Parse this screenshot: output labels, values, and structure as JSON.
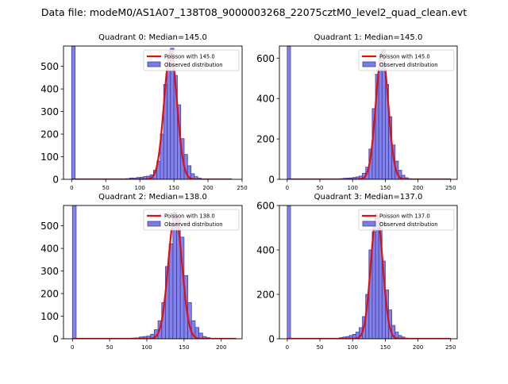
{
  "suptitle": "Data file: modeM0/AS1A07_138T08_9000003268_22075cztM0_level2_quad_clean.evt",
  "colors": {
    "bar_fill": "#7b7bea",
    "bar_edge": "#4040a0",
    "curve": "#e01010"
  },
  "chart_data": [
    {
      "type": "bar",
      "title": "Quadrant 0: Median=145.0",
      "xlim": [
        -12,
        250
      ],
      "ylim": [
        0,
        590
      ],
      "xticks": [
        0,
        50,
        100,
        150,
        200,
        250
      ],
      "yticks": [
        0,
        100,
        200,
        300,
        400,
        500
      ],
      "bin_width": 5,
      "bins": [
        [
          0,
          590
        ],
        [
          80,
          3
        ],
        [
          85,
          6
        ],
        [
          90,
          5
        ],
        [
          95,
          8
        ],
        [
          100,
          9
        ],
        [
          105,
          12
        ],
        [
          110,
          14
        ],
        [
          115,
          20
        ],
        [
          120,
          40
        ],
        [
          125,
          80
        ],
        [
          130,
          200
        ],
        [
          135,
          420
        ],
        [
          140,
          540
        ],
        [
          145,
          580
        ],
        [
          150,
          460
        ],
        [
          155,
          330
        ],
        [
          160,
          180
        ],
        [
          165,
          110
        ],
        [
          170,
          60
        ],
        [
          175,
          25
        ],
        [
          180,
          12
        ],
        [
          185,
          5
        ],
        [
          190,
          2
        ]
      ],
      "curve": {
        "label": "Poisson with 145.0",
        "mean": 145.0,
        "peak": 570,
        "xmax": 235
      },
      "legend": {
        "line": "Poisson with 145.0",
        "patch": "Observed distribution",
        "location": "upper right"
      }
    },
    {
      "type": "bar",
      "title": "Quadrant 1: Median=145.0",
      "xlim": [
        -12,
        260
      ],
      "ylim": [
        0,
        660
      ],
      "xticks": [
        0,
        50,
        100,
        150,
        200,
        250
      ],
      "yticks": [
        0,
        200,
        400,
        600
      ],
      "bin_width": 5,
      "bins": [
        [
          0,
          660
        ],
        [
          80,
          3
        ],
        [
          85,
          5
        ],
        [
          90,
          6
        ],
        [
          95,
          7
        ],
        [
          100,
          9
        ],
        [
          105,
          12
        ],
        [
          110,
          16
        ],
        [
          115,
          30
        ],
        [
          120,
          60
        ],
        [
          125,
          150
        ],
        [
          130,
          350
        ],
        [
          135,
          520
        ],
        [
          140,
          600
        ],
        [
          145,
          640
        ],
        [
          150,
          470
        ],
        [
          155,
          310
        ],
        [
          160,
          170
        ],
        [
          165,
          90
        ],
        [
          170,
          45
        ],
        [
          175,
          20
        ],
        [
          180,
          8
        ],
        [
          185,
          3
        ]
      ],
      "curve": {
        "label": "Poisson with 145.0",
        "mean": 145.0,
        "peak": 630,
        "xmax": 250
      },
      "legend": {
        "line": "Poisson with 145.0",
        "patch": "Observed distribution",
        "location": "upper right"
      }
    },
    {
      "type": "bar",
      "title": "Quadrant 2: Median=138.0",
      "xlim": [
        -12,
        228
      ],
      "ylim": [
        0,
        590
      ],
      "xticks": [
        0,
        50,
        100,
        150,
        200
      ],
      "yticks": [
        0,
        100,
        200,
        300,
        400,
        500
      ],
      "bin_width": 5,
      "bins": [
        [
          0,
          590
        ],
        [
          80,
          3
        ],
        [
          85,
          4
        ],
        [
          90,
          8
        ],
        [
          95,
          10
        ],
        [
          100,
          12
        ],
        [
          105,
          20
        ],
        [
          110,
          40
        ],
        [
          115,
          80
        ],
        [
          120,
          160
        ],
        [
          125,
          320
        ],
        [
          130,
          420
        ],
        [
          135,
          560
        ],
        [
          140,
          530
        ],
        [
          145,
          450
        ],
        [
          150,
          280
        ],
        [
          155,
          160
        ],
        [
          160,
          80
        ],
        [
          165,
          50
        ],
        [
          170,
          25
        ],
        [
          175,
          10
        ],
        [
          180,
          5
        ]
      ],
      "curve": {
        "label": "Poisson with 138.0",
        "mean": 138.0,
        "peak": 555,
        "xmax": 220
      },
      "legend": {
        "line": "Poisson with 138.0",
        "patch": "Observed distribution",
        "location": "upper right"
      }
    },
    {
      "type": "bar",
      "title": "Quadrant 3: Median=137.0",
      "xlim": [
        -12,
        260
      ],
      "ylim": [
        0,
        600
      ],
      "xticks": [
        0,
        50,
        100,
        150,
        200,
        250
      ],
      "yticks": [
        0,
        200,
        400,
        600
      ],
      "bin_width": 5,
      "bins": [
        [
          0,
          600
        ],
        [
          80,
          5
        ],
        [
          85,
          8
        ],
        [
          90,
          10
        ],
        [
          95,
          15
        ],
        [
          100,
          20
        ],
        [
          105,
          30
        ],
        [
          110,
          50
        ],
        [
          115,
          100
        ],
        [
          120,
          200
        ],
        [
          125,
          400
        ],
        [
          130,
          480
        ],
        [
          135,
          550
        ],
        [
          140,
          530
        ],
        [
          145,
          350
        ],
        [
          150,
          220
        ],
        [
          155,
          130
        ],
        [
          160,
          60
        ],
        [
          165,
          30
        ],
        [
          170,
          15
        ],
        [
          175,
          8
        ],
        [
          180,
          3
        ]
      ],
      "curve": {
        "label": "Poisson with 137.0",
        "mean": 137.0,
        "peak": 560,
        "xmax": 250
      },
      "legend": {
        "line": "Poisson with 137.0",
        "patch": "Observed distribution",
        "location": "upper right"
      }
    }
  ]
}
